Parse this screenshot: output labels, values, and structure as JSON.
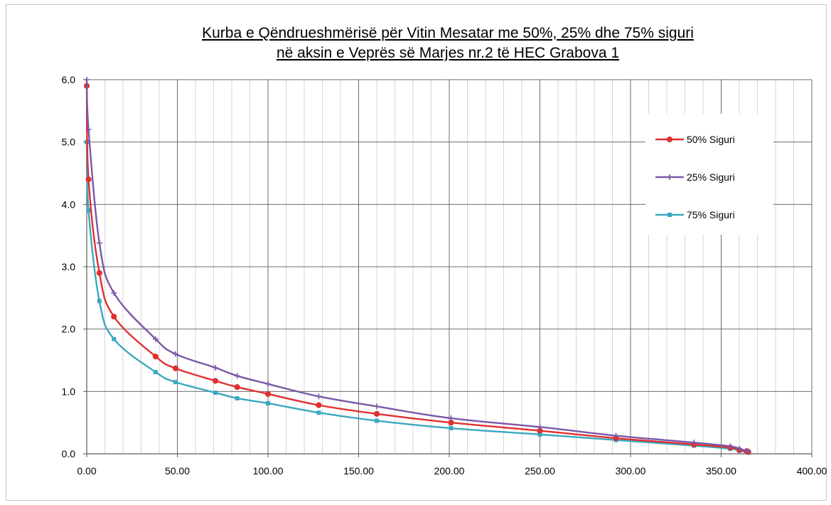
{
  "chart_data": {
    "type": "line",
    "title": "Kurba e Qëndrueshmërisë për Vitin Mesatar me 50%, 25% dhe 75% siguri",
    "title_lines": [
      "Kurba e Qëndrueshmërisë për Vitin Mesatar me 50%, 25% dhe 75% siguri",
      "në aksin e Veprës së Marjes nr.2 të HEC Grabova 1"
    ],
    "xlabel": "",
    "ylabel": "",
    "xlim": [
      0,
      400
    ],
    "ylim": [
      0,
      6
    ],
    "x_ticks": [
      "0.00",
      "50.00",
      "100.00",
      "150.00",
      "200.00",
      "250.00",
      "300.00",
      "350.00",
      "400.00"
    ],
    "y_ticks": [
      "0.0",
      "1.0",
      "2.0",
      "3.0",
      "4.0",
      "5.0",
      "6.0"
    ],
    "grid": true,
    "legend_position": "top-right",
    "series": [
      {
        "name": "50% Siguri",
        "color": "#e03030",
        "marker": "circle",
        "x": [
          0,
          1,
          7,
          15,
          38,
          49,
          71,
          83,
          100,
          128,
          160,
          201,
          250,
          292,
          335,
          355,
          360,
          364,
          365
        ],
        "y": [
          5.9,
          4.4,
          2.9,
          2.2,
          1.56,
          1.37,
          1.17,
          1.07,
          0.96,
          0.78,
          0.64,
          0.5,
          0.37,
          0.25,
          0.15,
          0.1,
          0.06,
          0.04,
          0.03
        ]
      },
      {
        "name": "25% Siguri",
        "color": "#7a58a8",
        "marker": "cross",
        "x": [
          0,
          1,
          7,
          15,
          38,
          49,
          71,
          83,
          100,
          128,
          160,
          201,
          250,
          292,
          335,
          355,
          360,
          364,
          365
        ],
        "y": [
          6.0,
          5.2,
          3.38,
          2.58,
          1.84,
          1.6,
          1.38,
          1.25,
          1.12,
          0.92,
          0.76,
          0.57,
          0.43,
          0.29,
          0.18,
          0.12,
          0.08,
          0.05,
          0.04
        ]
      },
      {
        "name": "75% Siguri",
        "color": "#3aa8c0",
        "marker": "square",
        "x": [
          0,
          1,
          7,
          15,
          38,
          49,
          71,
          83,
          100,
          128,
          160,
          201,
          250,
          292,
          335,
          355,
          360,
          364,
          365
        ],
        "y": [
          5.0,
          3.9,
          2.45,
          1.84,
          1.31,
          1.15,
          0.98,
          0.89,
          0.81,
          0.66,
          0.53,
          0.41,
          0.31,
          0.22,
          0.13,
          0.08,
          0.05,
          0.03,
          0.02
        ]
      }
    ]
  }
}
